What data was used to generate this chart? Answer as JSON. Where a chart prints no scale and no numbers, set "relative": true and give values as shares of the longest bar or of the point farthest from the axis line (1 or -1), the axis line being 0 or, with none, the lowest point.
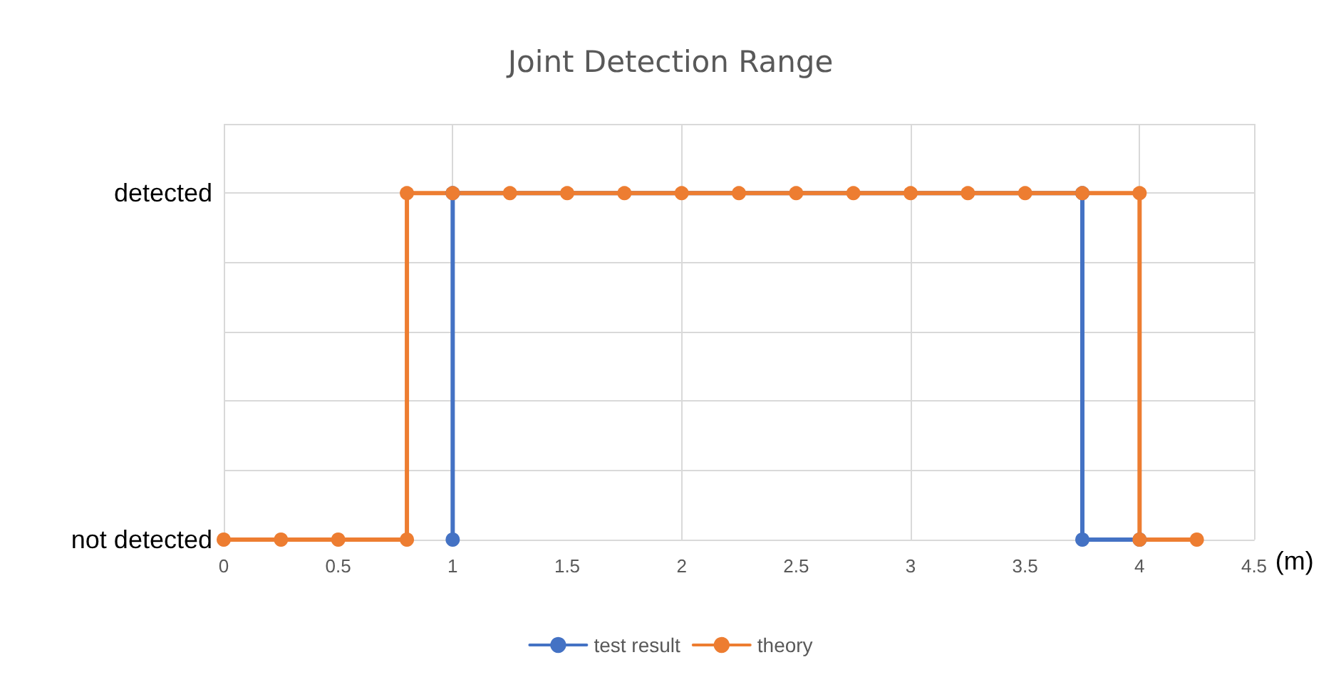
{
  "chart_data": {
    "type": "line",
    "title": "Joint Detection Range",
    "xlabel": "(m)",
    "xlim": [
      0,
      4.5
    ],
    "xticks": [
      0,
      0.5,
      1,
      1.5,
      2,
      2.5,
      3,
      3.5,
      4,
      4.5
    ],
    "relative": true,
    "annotations": [
      "detected",
      "not detected"
    ],
    "series": [
      {
        "name": "test result",
        "color": "#4472c4",
        "x": [
          1,
          1,
          3.75,
          3.75,
          4
        ],
        "values": [
          0,
          1,
          1,
          0,
          0
        ]
      },
      {
        "name": "theory",
        "color": "#ed7d31",
        "x": [
          0,
          0.25,
          0.5,
          0.8,
          0.8,
          1,
          1.25,
          1.5,
          1.75,
          2,
          2.25,
          2.5,
          2.75,
          3,
          3.25,
          3.5,
          3.75,
          4,
          4,
          4.25
        ],
        "values": [
          0,
          0,
          0,
          0,
          1,
          1,
          1,
          1,
          1,
          1,
          1,
          1,
          1,
          1,
          1,
          1,
          1,
          1,
          0,
          0
        ]
      }
    ],
    "marker": "circle",
    "line_style": "solid",
    "grid": true,
    "legend": "bottom"
  }
}
